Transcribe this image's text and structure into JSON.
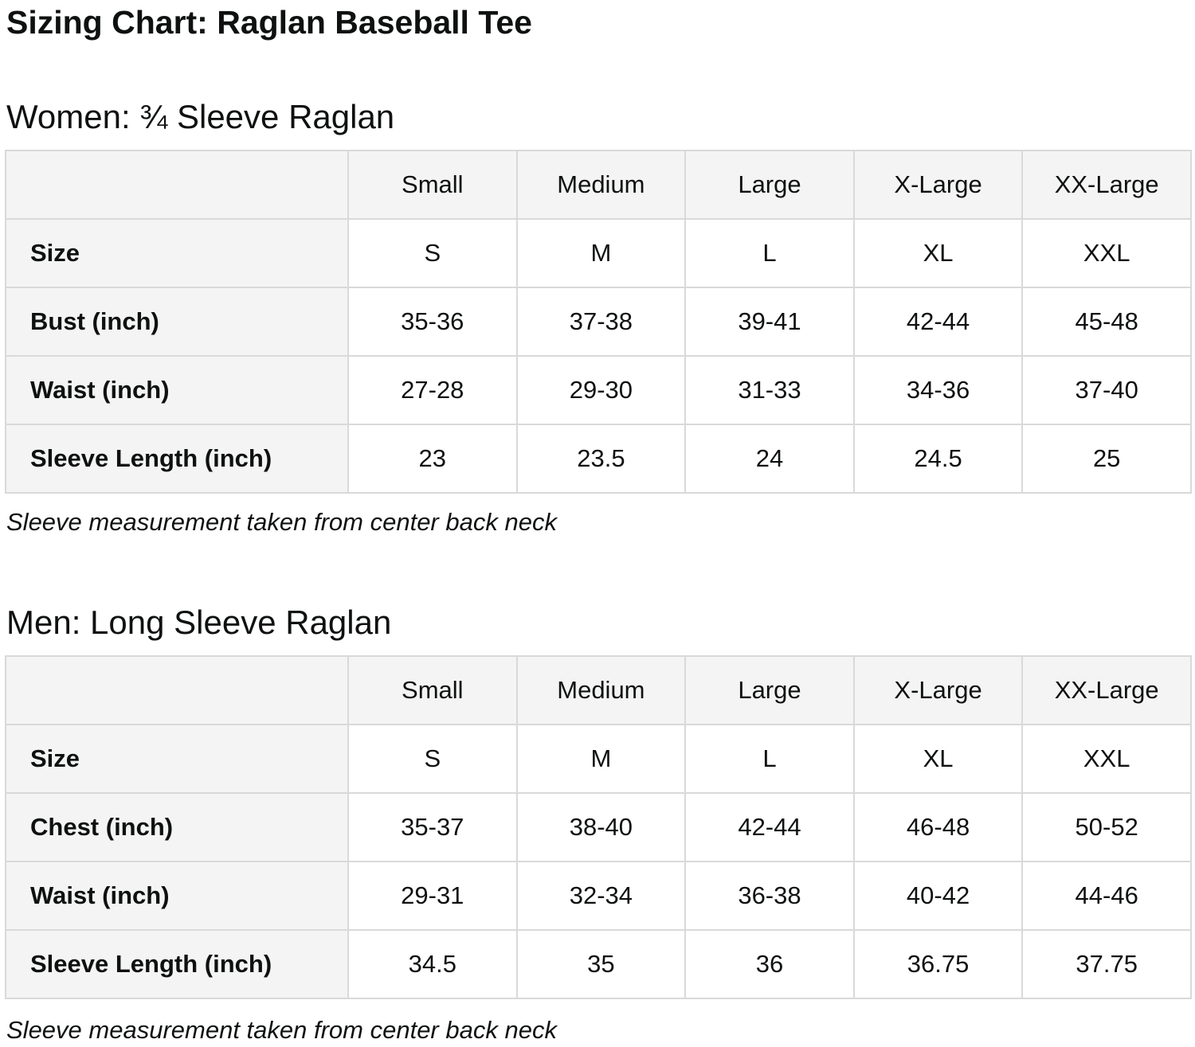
{
  "page": {
    "title": "Sizing Chart: Raglan Baseball Tee"
  },
  "colors": {
    "background": "#FFFFFF",
    "text": "#0F1111",
    "header_cell_bg": "#F4F4F4",
    "table_border": "#D9D9D9"
  },
  "sections": [
    {
      "heading": "Women: ¾ Sleeve Raglan",
      "note": "Sleeve measurement taken from center back neck",
      "table": {
        "columns": [
          "",
          "Small",
          "Medium",
          "Large",
          "X-Large",
          "XX-Large"
        ],
        "rows": [
          {
            "label": "Size",
            "values": [
              "S",
              "M",
              "L",
              "XL",
              "XXL"
            ]
          },
          {
            "label": "Bust (inch)",
            "values": [
              "35-36",
              "37-38",
              "39-41",
              "42-44",
              "45-48"
            ]
          },
          {
            "label": "Waist (inch)",
            "values": [
              "27-28",
              "29-30",
              "31-33",
              "34-36",
              "37-40"
            ]
          },
          {
            "label": "Sleeve Length (inch)",
            "values": [
              "23",
              "23.5",
              "24",
              "24.5",
              "25"
            ]
          }
        ]
      }
    },
    {
      "heading": "Men: Long Sleeve Raglan",
      "note": "Sleeve measurement taken from center back neck",
      "table": {
        "columns": [
          "",
          "Small",
          "Medium",
          "Large",
          "X-Large",
          "XX-Large"
        ],
        "rows": [
          {
            "label": "Size",
            "values": [
              "S",
              "M",
              "L",
              "XL",
              "XXL"
            ]
          },
          {
            "label": "Chest (inch)",
            "values": [
              "35-37",
              "38-40",
              "42-44",
              "46-48",
              "50-52"
            ]
          },
          {
            "label": "Waist (inch)",
            "values": [
              "29-31",
              "32-34",
              "36-38",
              "40-42",
              "44-46"
            ]
          },
          {
            "label": "Sleeve Length (inch)",
            "values": [
              "34.5",
              "35",
              "36",
              "36.75",
              "37.75"
            ]
          }
        ]
      }
    }
  ]
}
